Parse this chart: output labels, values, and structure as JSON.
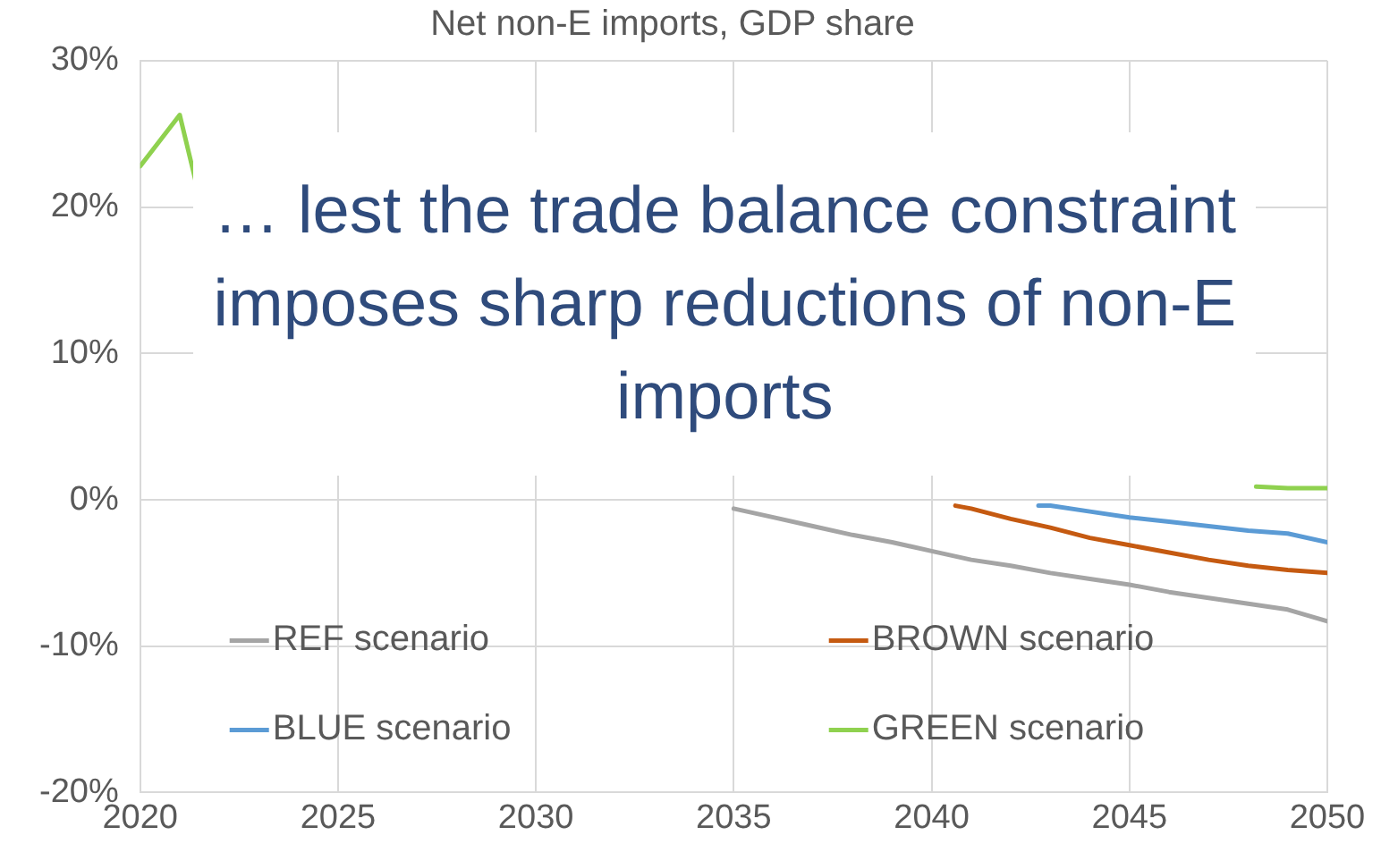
{
  "chart_data": {
    "type": "line",
    "title": "Net non-E imports, GDP share",
    "annotations": [
      "… lest the trade balance constraint imposes sharp reductions of non-E imports"
    ],
    "xlim": [
      2020,
      2050
    ],
    "xticks": [
      2020,
      2025,
      2030,
      2035,
      2040,
      2045,
      2050
    ],
    "ylim": [
      -20,
      30
    ],
    "yticks": [
      {
        "value": -20,
        "label": "-20%"
      },
      {
        "value": -10,
        "label": "-10%"
      },
      {
        "value": 0,
        "label": "0%"
      },
      {
        "value": 10,
        "label": "10%"
      },
      {
        "value": 20,
        "label": "20%"
      },
      {
        "value": 30,
        "label": "30%"
      }
    ],
    "grid": true,
    "legend": "bottom",
    "marker": "none",
    "line_style": "solid",
    "series": [
      {
        "name": "REF scenario",
        "color": "#a5a5a5",
        "x": [
          2035,
          2036,
          2037,
          2038,
          2039,
          2040,
          2041,
          2042,
          2043,
          2044,
          2045,
          2046,
          2047,
          2048,
          2049,
          2050
        ],
        "values": [
          -0.6,
          -1.2,
          -1.8,
          -2.4,
          -2.9,
          -3.5,
          -4.1,
          -4.5,
          -5.0,
          -5.4,
          -5.8,
          -6.3,
          -6.7,
          -7.1,
          -7.5,
          -8.3
        ]
      },
      {
        "name": "BROWN scenario",
        "color": "#c55a11",
        "x": [
          2040.6,
          2041,
          2042,
          2043,
          2044,
          2045,
          2046,
          2047,
          2048,
          2049,
          2050
        ],
        "values": [
          -0.4,
          -0.6,
          -1.3,
          -1.9,
          -2.6,
          -3.1,
          -3.6,
          -4.1,
          -4.5,
          -4.8,
          -5.0
        ]
      },
      {
        "name": "BLUE scenario",
        "color": "#5b9bd5",
        "x": [
          2042.7,
          2043,
          2044,
          2045,
          2046,
          2047,
          2048,
          2049,
          2050
        ],
        "values": [
          -0.4,
          -0.4,
          -0.8,
          -1.2,
          -1.5,
          -1.8,
          -2.1,
          -2.3,
          -2.9
        ]
      },
      {
        "name": "GREEN scenario",
        "color": "#8fd14f",
        "x": [
          2020,
          2021,
          2021.4,
          2021.5,
          2048.2,
          2049,
          2050
        ],
        "values": [
          22.8,
          26.3,
          21.8,
          null,
          0.9,
          0.8,
          0.8
        ]
      }
    ]
  }
}
